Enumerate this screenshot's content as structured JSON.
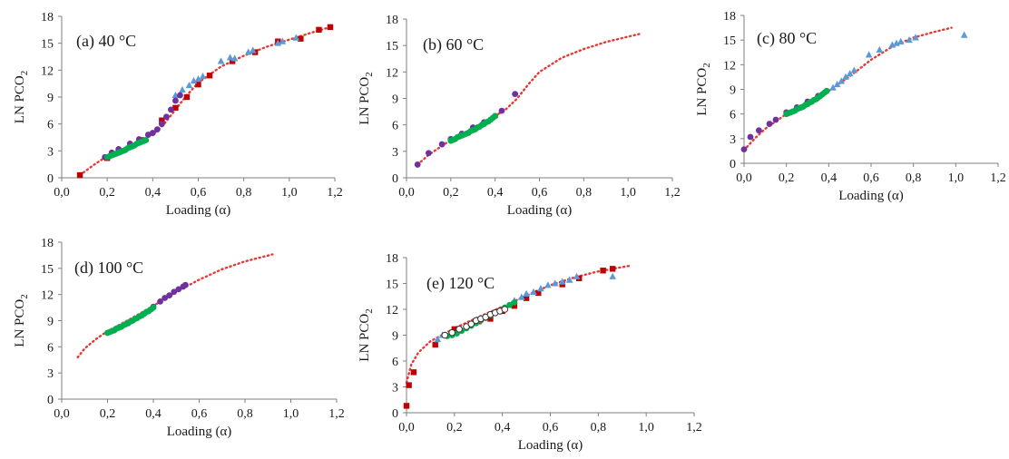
{
  "figure": {
    "colors": {
      "fit": "#e53935",
      "square": "#c00000",
      "triangle": "#5b9bd5",
      "purple": "#7030a0",
      "green": "#00b050",
      "open_circle": "#ffffff",
      "axis": "#7f7f7f",
      "text": "#1a1a1a"
    }
  },
  "chart_data": [
    {
      "id": "a",
      "type": "scatter",
      "title": "(a) 40 °C",
      "xlabel": "Loading  (α)",
      "ylabel": "LN PCO",
      "ylabel_subscript": "2",
      "xlim": [
        0,
        1.2
      ],
      "ylim": [
        0,
        18
      ],
      "x_tick_labels": [
        "0,0",
        "0,2",
        "0,4",
        "0,6",
        "0,8",
        "1,0",
        "1,2"
      ],
      "y_tick_labels": [
        "0",
        "3",
        "6",
        "9",
        "12",
        "15",
        "18"
      ],
      "grid": false,
      "legend": "none",
      "fit_line": {
        "x": [
          0.08,
          0.15,
          0.2,
          0.3,
          0.4,
          0.45,
          0.5,
          0.55,
          0.6,
          0.7,
          0.8,
          0.9,
          1.0,
          1.1,
          1.18
        ],
        "y": [
          0.3,
          1.6,
          2.4,
          3.6,
          4.8,
          6.0,
          7.6,
          9.2,
          10.6,
          12.4,
          13.6,
          14.6,
          15.4,
          16.2,
          16.8
        ]
      },
      "series": [
        {
          "marker": "square",
          "color": "#c00000",
          "x": [
            0.08,
            0.2,
            0.35,
            0.44,
            0.5,
            0.55,
            0.6,
            0.65,
            0.75,
            0.85,
            0.95,
            1.05,
            1.13,
            1.18
          ],
          "y": [
            0.3,
            2.2,
            4.2,
            6.4,
            7.8,
            9.0,
            10.4,
            11.4,
            13.0,
            14.0,
            15.2,
            15.5,
            16.5,
            16.8
          ]
        },
        {
          "marker": "triangle",
          "color": "#5b9bd5",
          "x": [
            0.5,
            0.53,
            0.56,
            0.58,
            0.6,
            0.62,
            0.7,
            0.74,
            0.76,
            0.82,
            0.84,
            0.95,
            0.97,
            1.03
          ],
          "y": [
            9.2,
            9.8,
            10.3,
            10.8,
            11.0,
            11.3,
            13.0,
            13.4,
            13.3,
            14.0,
            14.2,
            15.0,
            15.2,
            15.6
          ]
        },
        {
          "marker": "circle",
          "color": "#7030a0",
          "x": [
            0.19,
            0.22,
            0.25,
            0.3,
            0.34,
            0.38,
            0.4,
            0.42,
            0.44,
            0.46,
            0.48,
            0.5,
            0.52
          ],
          "y": [
            2.3,
            2.8,
            3.2,
            3.8,
            4.3,
            4.8,
            5.0,
            5.4,
            6.0,
            6.8,
            7.6,
            8.6,
            9.2
          ]
        },
        {
          "marker": "circle",
          "color": "#00b050",
          "x": [
            0.2,
            0.21,
            0.22,
            0.23,
            0.24,
            0.25,
            0.26,
            0.27,
            0.28,
            0.29,
            0.3,
            0.31,
            0.32,
            0.33,
            0.34,
            0.35,
            0.36,
            0.37
          ],
          "y": [
            2.3,
            2.4,
            2.5,
            2.6,
            2.7,
            2.8,
            2.9,
            3.0,
            3.1,
            3.3,
            3.4,
            3.5,
            3.6,
            3.8,
            3.9,
            4.0,
            4.1,
            4.2
          ]
        }
      ]
    },
    {
      "id": "b",
      "type": "scatter",
      "title": "(b) 60 °C",
      "xlabel": "Loading  (α)",
      "ylabel": "LN PCO",
      "ylabel_subscript": "2",
      "xlim": [
        0,
        1.2
      ],
      "ylim": [
        0,
        18
      ],
      "x_tick_labels": [
        "0,0",
        "0,2",
        "0,4",
        "0,6",
        "0,8",
        "1,0",
        "1,2"
      ],
      "y_tick_labels": [
        "0",
        "3",
        "6",
        "9",
        "12",
        "15",
        "18"
      ],
      "grid": false,
      "legend": "none",
      "fit_line": {
        "x": [
          0.05,
          0.1,
          0.2,
          0.3,
          0.4,
          0.45,
          0.5,
          0.55,
          0.6,
          0.7,
          0.8,
          0.9,
          1.0,
          1.05
        ],
        "y": [
          1.5,
          2.6,
          4.3,
          5.6,
          7.0,
          7.8,
          9.0,
          10.6,
          12.0,
          13.6,
          14.6,
          15.4,
          16.0,
          16.3
        ]
      },
      "series": [
        {
          "marker": "circle",
          "color": "#7030a0",
          "x": [
            0.05,
            0.1,
            0.16,
            0.2,
            0.25,
            0.3,
            0.35,
            0.4,
            0.43,
            0.49
          ],
          "y": [
            1.5,
            2.8,
            3.8,
            4.4,
            5.0,
            5.7,
            6.3,
            7.0,
            7.6,
            9.5
          ]
        },
        {
          "marker": "circle",
          "color": "#00b050",
          "x": [
            0.2,
            0.21,
            0.22,
            0.23,
            0.24,
            0.25,
            0.26,
            0.27,
            0.28,
            0.29,
            0.3,
            0.31,
            0.32,
            0.33,
            0.34,
            0.35,
            0.36,
            0.37,
            0.38,
            0.39,
            0.4
          ],
          "y": [
            4.2,
            4.3,
            4.4,
            4.6,
            4.7,
            4.8,
            4.9,
            5.0,
            5.1,
            5.3,
            5.4,
            5.5,
            5.7,
            5.8,
            6.0,
            6.1,
            6.3,
            6.4,
            6.6,
            6.8,
            7.0
          ]
        }
      ]
    },
    {
      "id": "c",
      "type": "scatter",
      "title": "(c) 80 °C",
      "xlabel": "Loading  (α)",
      "ylabel": "LN PCO",
      "ylabel_subscript": "2",
      "xlim": [
        0,
        1.2
      ],
      "ylim": [
        0,
        18
      ],
      "x_tick_labels": [
        "0,0",
        "0,2",
        "0,4",
        "0,6",
        "0,8",
        "1,0",
        "1,2"
      ],
      "y_tick_labels": [
        "0",
        "3",
        "6",
        "9",
        "12",
        "15",
        "18"
      ],
      "grid": false,
      "legend": "none",
      "fit_line": {
        "x": [
          0.0,
          0.05,
          0.1,
          0.2,
          0.3,
          0.4,
          0.5,
          0.6,
          0.7,
          0.8,
          0.9,
          0.98
        ],
        "y": [
          1.6,
          3.0,
          4.2,
          6.0,
          7.4,
          8.8,
          10.6,
          12.6,
          14.2,
          15.3,
          16.0,
          16.5
        ]
      },
      "series": [
        {
          "marker": "triangle",
          "color": "#5b9bd5",
          "x": [
            0.42,
            0.44,
            0.46,
            0.48,
            0.5,
            0.52,
            0.59,
            0.64,
            0.7,
            0.72,
            0.74,
            0.78,
            0.81,
            1.04
          ],
          "y": [
            9.2,
            9.6,
            10.0,
            10.5,
            10.9,
            11.3,
            13.2,
            13.8,
            14.4,
            14.6,
            14.8,
            15.0,
            15.3,
            15.6
          ]
        },
        {
          "marker": "circle",
          "color": "#7030a0",
          "x": [
            0.0,
            0.03,
            0.07,
            0.12,
            0.15,
            0.2,
            0.25,
            0.3,
            0.35,
            0.39
          ],
          "y": [
            1.7,
            3.2,
            4.0,
            4.8,
            5.3,
            6.2,
            6.8,
            7.5,
            8.2,
            8.8
          ]
        },
        {
          "marker": "circle",
          "color": "#00b050",
          "x": [
            0.2,
            0.21,
            0.22,
            0.23,
            0.24,
            0.25,
            0.26,
            0.27,
            0.28,
            0.29,
            0.3,
            0.31,
            0.32,
            0.33,
            0.34,
            0.35,
            0.36,
            0.37,
            0.38,
            0.39
          ],
          "y": [
            6.0,
            6.1,
            6.2,
            6.3,
            6.4,
            6.6,
            6.7,
            6.8,
            6.9,
            7.1,
            7.2,
            7.4,
            7.5,
            7.7,
            7.8,
            8.0,
            8.2,
            8.4,
            8.6,
            8.8
          ]
        }
      ]
    },
    {
      "id": "d",
      "type": "scatter",
      "title": "(d) 100 °C",
      "xlabel": "Loading  (α)",
      "ylabel": "LN PCO",
      "ylabel_subscript": "2",
      "xlim": [
        0,
        1.2
      ],
      "ylim": [
        0,
        18
      ],
      "x_tick_labels": [
        "0,0",
        "0,2",
        "0,4",
        "0,6",
        "0,8",
        "1,0",
        "1,2"
      ],
      "y_tick_labels": [
        "0",
        "3",
        "6",
        "9",
        "12",
        "15",
        "18"
      ],
      "grid": false,
      "legend": "none",
      "fit_line": {
        "x": [
          0.07,
          0.1,
          0.15,
          0.2,
          0.3,
          0.4,
          0.5,
          0.6,
          0.7,
          0.8,
          0.92
        ],
        "y": [
          4.8,
          5.8,
          6.9,
          7.8,
          9.2,
          10.7,
          12.3,
          13.7,
          14.9,
          15.8,
          16.6
        ]
      },
      "series": [
        {
          "marker": "circle",
          "color": "#7030a0",
          "x": [
            0.4,
            0.43,
            0.45,
            0.47,
            0.49,
            0.51,
            0.53,
            0.54
          ],
          "y": [
            10.6,
            11.2,
            11.6,
            11.9,
            12.3,
            12.6,
            12.9,
            13.1
          ]
        },
        {
          "marker": "circle",
          "color": "#00b050",
          "x": [
            0.2,
            0.21,
            0.22,
            0.23,
            0.24,
            0.25,
            0.26,
            0.27,
            0.28,
            0.29,
            0.3,
            0.31,
            0.32,
            0.33,
            0.34,
            0.35,
            0.36,
            0.37,
            0.38,
            0.39,
            0.4
          ],
          "y": [
            7.6,
            7.7,
            7.8,
            7.9,
            8.1,
            8.2,
            8.3,
            8.5,
            8.6,
            8.7,
            8.9,
            9.0,
            9.2,
            9.3,
            9.5,
            9.6,
            9.8,
            10.0,
            10.1,
            10.3,
            10.5
          ]
        }
      ]
    },
    {
      "id": "e",
      "type": "scatter",
      "title": "(e) 120 °C",
      "xlabel": "Loading  (α)",
      "ylabel": "LN PCO",
      "ylabel_subscript": "2",
      "xlim": [
        0,
        1.2
      ],
      "ylim": [
        0,
        18
      ],
      "x_tick_labels": [
        "0,0",
        "0,2",
        "0,4",
        "0,6",
        "0,8",
        "1,0",
        "1,2"
      ],
      "y_tick_labels": [
        "0",
        "3",
        "6",
        "9",
        "12",
        "15",
        "18"
      ],
      "grid": false,
      "legend": "none",
      "fit_line": {
        "x": [
          0.0,
          0.02,
          0.05,
          0.1,
          0.2,
          0.3,
          0.4,
          0.5,
          0.6,
          0.7,
          0.8,
          0.94
        ],
        "y": [
          3.5,
          5.6,
          7.0,
          8.3,
          9.8,
          11.1,
          12.3,
          13.6,
          14.8,
          15.7,
          16.4,
          17.1
        ]
      },
      "series": [
        {
          "marker": "square",
          "color": "#c00000",
          "x": [
            0.0,
            0.01,
            0.03,
            0.12,
            0.2,
            0.3,
            0.35,
            0.4,
            0.45,
            0.5,
            0.55,
            0.65,
            0.72,
            0.82,
            0.86
          ],
          "y": [
            0.8,
            3.2,
            4.7,
            7.9,
            9.7,
            10.6,
            10.9,
            11.8,
            12.4,
            13.3,
            13.9,
            14.9,
            15.6,
            16.5,
            16.7
          ]
        },
        {
          "marker": "triangle",
          "color": "#5b9bd5",
          "x": [
            0.13,
            0.15,
            0.45,
            0.48,
            0.5,
            0.53,
            0.56,
            0.59,
            0.62,
            0.65,
            0.68,
            0.71,
            0.86
          ],
          "y": [
            8.5,
            9.0,
            13.0,
            13.4,
            13.8,
            14.0,
            14.4,
            14.8,
            15.0,
            15.2,
            15.4,
            15.8,
            15.8
          ]
        },
        {
          "marker": "circle",
          "color": "#00b050",
          "x": [
            0.17,
            0.19,
            0.21,
            0.23,
            0.25,
            0.27,
            0.29,
            0.31,
            0.33,
            0.35,
            0.37,
            0.39,
            0.41,
            0.43,
            0.45
          ],
          "y": [
            8.9,
            9.0,
            9.2,
            9.5,
            9.8,
            10.1,
            10.4,
            10.7,
            11.0,
            11.3,
            11.6,
            11.9,
            12.2,
            12.5,
            12.8
          ]
        },
        {
          "marker": "open_circle",
          "color": "#ffffff",
          "x": [
            0.16,
            0.19,
            0.22,
            0.25,
            0.27,
            0.29,
            0.31,
            0.33,
            0.35,
            0.37,
            0.39,
            0.41
          ],
          "y": [
            9.0,
            9.3,
            9.7,
            10.0,
            10.3,
            10.7,
            10.9,
            11.1,
            11.4,
            11.6,
            11.8,
            12.0
          ]
        }
      ]
    }
  ]
}
